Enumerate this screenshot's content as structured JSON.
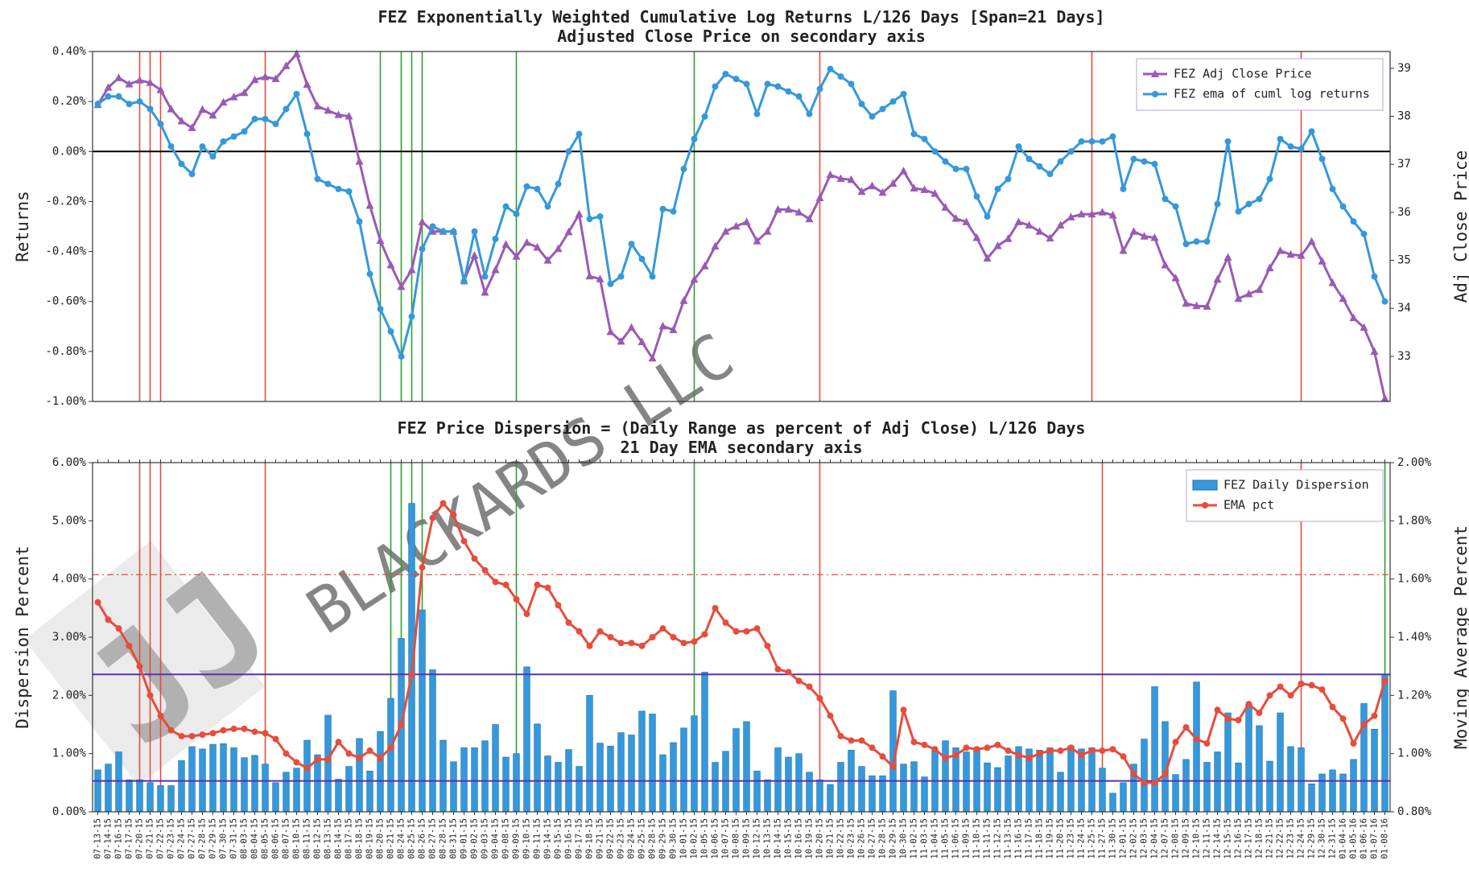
{
  "watermark": "BLACKARDS LLC",
  "chart_data": [
    {
      "type": "line",
      "title": "FEZ Exponentially Weighted Cumulative Log Returns L/126 Days [Span=21 Days]",
      "subtitle": "Adjusted Close Price on secondary axis",
      "ylabel": "Returns",
      "y2label": "Adj Close Price",
      "ylim": [
        -1.0,
        0.4
      ],
      "yticks": [
        {
          "value": 0.4,
          "label": "0.40%"
        },
        {
          "value": 0.2,
          "label": "0.20%"
        },
        {
          "value": 0,
          "label": "0.00%"
        },
        {
          "value": -0.2,
          "label": "-0.20%"
        },
        {
          "value": -0.4,
          "label": "-0.40%"
        },
        {
          "value": -0.6,
          "label": "-0.60%"
        },
        {
          "value": -0.8,
          "label": "-0.80%"
        },
        {
          "value": -1.0,
          "label": "-1.00%"
        }
      ],
      "y2lim": [
        32.06,
        39.35
      ],
      "y2ticks": [
        33,
        34,
        35,
        36,
        37,
        38,
        39
      ],
      "legend": "upper right",
      "hlines": [
        {
          "value": 0,
          "color": "#000000"
        }
      ],
      "vlines": [
        {
          "x": "07-20-15",
          "color": "#e74c3c"
        },
        {
          "x": "07-21-15",
          "color": "#e74c3c"
        },
        {
          "x": "07-22-15",
          "color": "#e74c3c"
        },
        {
          "x": "08-05-15",
          "color": "#e74c3c"
        },
        {
          "x": "10-20-15",
          "color": "#e74c3c"
        },
        {
          "x": "11-25-15",
          "color": "#e74c3c"
        },
        {
          "x": "12-24-15",
          "color": "#e74c3c"
        },
        {
          "x": "08-20-15",
          "color": "#2ca02c"
        },
        {
          "x": "08-24-15",
          "color": "#2ca02c"
        },
        {
          "x": "08-25-15",
          "color": "#2ca02c"
        },
        {
          "x": "08-26-15",
          "color": "#2ca02c"
        },
        {
          "x": "09-09-15",
          "color": "#2ca02c"
        },
        {
          "x": "10-02-15",
          "color": "#2ca02c"
        }
      ],
      "series": [
        {
          "name": "FEZ Adj Close Price",
          "color": "#9b59b6",
          "marker": "triangle",
          "axis": "y2",
          "values": [
            38.24,
            38.6,
            38.8,
            38.67,
            38.75,
            38.7,
            38.55,
            38.15,
            37.9,
            37.76,
            38.14,
            38.02,
            38.29,
            38.4,
            38.49,
            38.76,
            38.82,
            38.78,
            39.05,
            39.3,
            38.66,
            38.21,
            38.12,
            38.03,
            38.0,
            37.06,
            36.14,
            35.41,
            34.9,
            34.45,
            34.8,
            35.8,
            35.6,
            35.6,
            35.6,
            34.57,
            35.1,
            34.33,
            34.8,
            35.33,
            35.08,
            35.37,
            35.27,
            35.0,
            35.24,
            35.59,
            35.96,
            34.67,
            34.61,
            33.51,
            33.31,
            33.6,
            33.3,
            32.96,
            33.63,
            33.55,
            34.16,
            34.6,
            34.88,
            35.29,
            35.6,
            35.71,
            35.8,
            35.4,
            35.6,
            36.06,
            36.06,
            36.0,
            35.86,
            36.3,
            36.78,
            36.7,
            36.68,
            36.43,
            36.55,
            36.41,
            36.6,
            36.86,
            36.5,
            36.47,
            36.39,
            36.1,
            35.87,
            35.8,
            35.47,
            35.04,
            35.3,
            35.45,
            35.8,
            35.73,
            35.6,
            35.46,
            35.73,
            35.9,
            35.96,
            35.96,
            36.0,
            35.94,
            35.2,
            35.6,
            35.5,
            35.47,
            34.9,
            34.63,
            34.1,
            34.05,
            34.04,
            34.6,
            35.06,
            34.2,
            34.3,
            34.39,
            34.84,
            35.2,
            35.12,
            35.1,
            35.39,
            34.98,
            34.53,
            34.2,
            33.8,
            33.6,
            33.1,
            32.12
          ]
        },
        {
          "name": "FEZ ema of cuml log returns",
          "color": "#3498db",
          "marker": "circle",
          "values": [
            0.19,
            0.22,
            0.22,
            0.19,
            0.2,
            0.17,
            0.11,
            0.02,
            -0.05,
            -0.09,
            0.02,
            -0.02,
            0.04,
            0.06,
            0.08,
            0.13,
            0.13,
            0.11,
            0.17,
            0.23,
            0.07,
            -0.11,
            -0.13,
            -0.15,
            -0.16,
            -0.28,
            -0.49,
            -0.63,
            -0.72,
            -0.82,
            -0.66,
            -0.39,
            -0.3,
            -0.32,
            -0.32,
            -0.52,
            -0.32,
            -0.5,
            -0.35,
            -0.22,
            -0.25,
            -0.14,
            -0.15,
            -0.22,
            -0.13,
            0.0,
            0.07,
            -0.27,
            -0.26,
            -0.53,
            -0.5,
            -0.37,
            -0.43,
            -0.5,
            -0.23,
            -0.24,
            -0.07,
            0.05,
            0.14,
            0.26,
            0.31,
            0.29,
            0.27,
            0.15,
            0.27,
            0.26,
            0.24,
            0.22,
            0.15,
            0.25,
            0.33,
            0.3,
            0.27,
            0.19,
            0.14,
            0.17,
            0.2,
            0.23,
            0.07,
            0.05,
            0.0,
            -0.04,
            -0.07,
            -0.07,
            -0.18,
            -0.26,
            -0.15,
            -0.11,
            0.02,
            -0.03,
            -0.06,
            -0.09,
            -0.04,
            0.0,
            0.04,
            0.04,
            0.04,
            0.06,
            -0.15,
            -0.03,
            -0.04,
            -0.05,
            -0.19,
            -0.22,
            -0.37,
            -0.36,
            -0.36,
            -0.21,
            0.04,
            -0.24,
            -0.21,
            -0.19,
            -0.11,
            0.05,
            0.02,
            0.01,
            0.08,
            -0.03,
            -0.15,
            -0.22,
            -0.28,
            -0.33,
            -0.5,
            -0.6
          ]
        }
      ]
    },
    {
      "type": "bar",
      "title": "FEZ Price Dispersion = (Daily Range as percent of Adj Close) L/126 Days",
      "subtitle": "21 Day EMA secondary axis",
      "ylabel": "Dispersion Percent",
      "y2label": "Moving Average Percent",
      "ylim": [
        0,
        6
      ],
      "yticks": [
        {
          "value": 0,
          "label": "0.00%"
        },
        {
          "value": 1,
          "label": "1.00%"
        },
        {
          "value": 2,
          "label": "2.00%"
        },
        {
          "value": 3,
          "label": "3.00%"
        },
        {
          "value": 4,
          "label": "4.00%"
        },
        {
          "value": 5,
          "label": "5.00%"
        },
        {
          "value": 6,
          "label": "6.00%"
        }
      ],
      "y2lim": [
        0.8,
        2.0
      ],
      "y2ticks": [
        {
          "value": 0.8,
          "label": "0.80%"
        },
        {
          "value": 1.0,
          "label": "1.00%"
        },
        {
          "value": 1.2,
          "label": "1.20%"
        },
        {
          "value": 1.4,
          "label": "1.40%"
        },
        {
          "value": 1.6,
          "label": "1.60%"
        },
        {
          "value": 1.8,
          "label": "1.80%"
        },
        {
          "value": 2.0,
          "label": "2.00%"
        }
      ],
      "legend": "upper right",
      "hlines": [
        {
          "value": 2.36,
          "color": "#5b2fb5"
        },
        {
          "value": 0.53,
          "color": "#5b2fb5"
        }
      ],
      "y2_hlines": [
        {
          "value": 1.615,
          "color": "#e74c3c",
          "style": "dashdot"
        }
      ],
      "vlines": [
        {
          "x": "07-20-15",
          "color": "#e74c3c"
        },
        {
          "x": "07-21-15",
          "color": "#e74c3c"
        },
        {
          "x": "07-22-15",
          "color": "#e74c3c"
        },
        {
          "x": "08-05-15",
          "color": "#e74c3c"
        },
        {
          "x": "10-20-15",
          "color": "#e74c3c"
        },
        {
          "x": "11-27-15",
          "color": "#e74c3c"
        },
        {
          "x": "12-24-15",
          "color": "#e74c3c"
        },
        {
          "x": "08-21-15",
          "color": "#2ca02c"
        },
        {
          "x": "08-24-15",
          "color": "#2ca02c"
        },
        {
          "x": "08-25-15",
          "color": "#2ca02c"
        },
        {
          "x": "08-26-15",
          "color": "#2ca02c"
        },
        {
          "x": "09-09-15",
          "color": "#2ca02c"
        },
        {
          "x": "10-02-15",
          "color": "#2ca02c"
        },
        {
          "x": "01-08-16",
          "color": "#2ca02c"
        }
      ],
      "categories": [
        "07-13-15",
        "07-14-15",
        "07-16-15",
        "07-17-15",
        "07-20-15",
        "07-21-15",
        "07-22-15",
        "07-23-15",
        "07-24-15",
        "07-27-15",
        "07-28-15",
        "07-29-15",
        "07-30-15",
        "07-31-15",
        "08-03-15",
        "08-04-15",
        "08-05-15",
        "08-06-15",
        "08-07-15",
        "08-10-15",
        "08-11-15",
        "08-12-15",
        "08-13-15",
        "08-14-15",
        "08-17-15",
        "08-18-15",
        "08-19-15",
        "08-20-15",
        "08-21-15",
        "08-24-15",
        "08-25-15",
        "08-26-15",
        "08-27-15",
        "08-28-15",
        "08-31-15",
        "09-01-15",
        "09-02-15",
        "09-03-15",
        "09-04-15",
        "09-08-15",
        "09-09-15",
        "09-10-15",
        "09-11-15",
        "09-14-15",
        "09-15-15",
        "09-16-15",
        "09-17-15",
        "09-18-15",
        "09-21-15",
        "09-22-15",
        "09-23-15",
        "09-24-15",
        "09-25-15",
        "09-28-15",
        "09-29-15",
        "09-30-15",
        "10-01-15",
        "10-02-15",
        "10-05-15",
        "10-06-15",
        "10-07-15",
        "10-08-15",
        "10-09-15",
        "10-12-15",
        "10-13-15",
        "10-14-15",
        "10-15-15",
        "10-16-15",
        "10-19-15",
        "10-20-15",
        "10-21-15",
        "10-22-15",
        "10-23-15",
        "10-26-15",
        "10-27-15",
        "10-28-15",
        "10-29-15",
        "10-30-15",
        "11-02-15",
        "11-03-15",
        "11-04-15",
        "11-05-15",
        "11-06-15",
        "11-09-15",
        "11-10-15",
        "11-11-15",
        "11-12-15",
        "11-13-15",
        "11-16-15",
        "11-17-15",
        "11-18-15",
        "11-19-15",
        "11-20-15",
        "11-23-15",
        "11-24-15",
        "11-25-15",
        "11-27-15",
        "11-30-15",
        "12-01-15",
        "12-02-15",
        "12-03-15",
        "12-04-15",
        "12-07-15",
        "12-08-15",
        "12-09-15",
        "12-10-15",
        "12-11-15",
        "12-14-15",
        "12-15-15",
        "12-16-15",
        "12-17-15",
        "12-18-15",
        "12-21-15",
        "12-22-15",
        "12-23-15",
        "12-24-15",
        "12-29-15",
        "12-30-15",
        "12-31-15",
        "01-04-16",
        "01-05-16",
        "01-06-16",
        "01-07-16",
        "01-08-16"
      ],
      "series": [
        {
          "name": "FEZ Daily Dispersion",
          "color": "#3498db",
          "type": "bar",
          "values": [
            0.72,
            0.82,
            1.03,
            0.55,
            0.55,
            0.5,
            0.45,
            0.45,
            0.88,
            1.12,
            1.08,
            1.16,
            1.17,
            1.1,
            0.93,
            0.97,
            0.82,
            0.5,
            0.68,
            0.75,
            1.23,
            0.98,
            1.66,
            0.56,
            0.78,
            1.26,
            0.7,
            1.38,
            1.95,
            2.98,
            5.3,
            3.47,
            2.44,
            1.23,
            0.86,
            1.1,
            1.1,
            1.22,
            1.5,
            0.94,
            1.0,
            2.49,
            1.51,
            0.96,
            0.85,
            1.07,
            0.78,
            2.0,
            1.18,
            1.13,
            1.36,
            1.32,
            1.73,
            1.68,
            0.98,
            1.19,
            1.44,
            1.65,
            2.4,
            0.85,
            1.04,
            1.43,
            1.55,
            0.7,
            0.55,
            1.1,
            0.94,
            1.0,
            0.68,
            0.55,
            0.47,
            0.85,
            1.06,
            0.78,
            0.62,
            0.62,
            2.08,
            0.82,
            0.86,
            0.6,
            1.05,
            1.22,
            1.1,
            1.03,
            1.1,
            0.84,
            0.76,
            0.96,
            1.12,
            1.08,
            1.06,
            1.1,
            0.68,
            1.13,
            1.08,
            1.1,
            0.75,
            0.32,
            0.5,
            0.82,
            1.25,
            2.15,
            1.55,
            0.64,
            0.9,
            2.23,
            0.85,
            1.03,
            1.7,
            0.84,
            1.85,
            1.48,
            0.87,
            1.7,
            1.12,
            1.1,
            0.48,
            0.65,
            0.72,
            0.65,
            0.9,
            1.86,
            1.42,
            2.36
          ]
        },
        {
          "name": "EMA pct",
          "color": "#e74c3c",
          "type": "line",
          "marker": "circle",
          "axis": "y2",
          "values": [
            1.52,
            1.46,
            1.43,
            1.37,
            1.3,
            1.2,
            1.13,
            1.08,
            1.06,
            1.06,
            1.065,
            1.07,
            1.08,
            1.085,
            1.085,
            1.075,
            1.07,
            1.05,
            1.0,
            0.97,
            0.95,
            0.98,
            0.98,
            1.04,
            1.0,
            0.985,
            1.01,
            0.985,
            1.02,
            1.1,
            1.27,
            1.64,
            1.81,
            1.86,
            1.82,
            1.73,
            1.67,
            1.63,
            1.59,
            1.58,
            1.53,
            1.48,
            1.58,
            1.57,
            1.51,
            1.45,
            1.42,
            1.37,
            1.42,
            1.4,
            1.38,
            1.38,
            1.37,
            1.4,
            1.43,
            1.4,
            1.38,
            1.385,
            1.41,
            1.5,
            1.45,
            1.42,
            1.42,
            1.43,
            1.37,
            1.29,
            1.28,
            1.25,
            1.23,
            1.19,
            1.13,
            1.06,
            1.045,
            1.045,
            1.02,
            0.99,
            0.955,
            1.15,
            1.04,
            1.03,
            1.015,
            0.985,
            0.995,
            1.02,
            1.015,
            1.02,
            1.03,
            1.01,
            0.995,
            0.985,
            1.0,
            1.01,
            1.01,
            1.02,
            0.995,
            1.01,
            1.01,
            1.015,
            0.99,
            0.93,
            0.9,
            0.9,
            0.93,
            1.04,
            1.09,
            1.05,
            1.035,
            1.15,
            1.12,
            1.115,
            1.17,
            1.14,
            1.2,
            1.23,
            1.2,
            1.24,
            1.235,
            1.22,
            1.16,
            1.12,
            1.035,
            1.1,
            1.13,
            1.25
          ]
        }
      ]
    }
  ]
}
